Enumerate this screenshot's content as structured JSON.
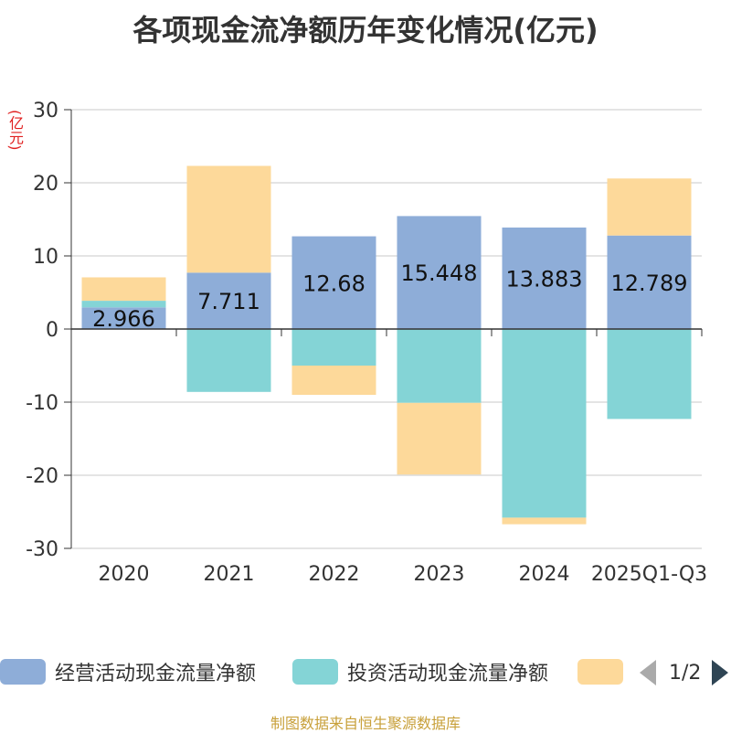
{
  "title": "各项现金流净额历年变化情况(亿元)",
  "unit_label": "(亿元)",
  "source": "制图数据来自恒生聚源数据库",
  "pager": {
    "text": "1/2"
  },
  "colors": {
    "operating": "#8eadd8",
    "investing": "#84d4d6",
    "financing": "#fdd99a",
    "axis": "#333333",
    "grid": "#c8c8c8"
  },
  "chart_data": {
    "type": "bar",
    "stacked": true,
    "title": "各项现金流净额历年变化情况(亿元)",
    "ylabel": "(亿元)",
    "ylim": [
      -30,
      30
    ],
    "yticks": [
      30,
      20,
      10,
      0,
      -10,
      -20,
      -30
    ],
    "categories": [
      "2020",
      "2021",
      "2022",
      "2023",
      "2024",
      "2025Q1-Q3"
    ],
    "legend_position": "bottom",
    "series": [
      {
        "name": "经营活动现金流量净额",
        "color_key": "operating",
        "values": [
          2.966,
          7.711,
          12.68,
          15.448,
          13.883,
          12.789
        ],
        "show_labels": true
      },
      {
        "name": "投资活动现金流量净额",
        "color_key": "investing",
        "values": [
          0.9,
          -8.6,
          -5.0,
          -10.1,
          -25.8,
          -12.3
        ],
        "show_labels": false
      },
      {
        "name": "",
        "color_key": "financing",
        "values": [
          3.2,
          14.6,
          -4.0,
          -9.8,
          -0.9,
          7.8
        ],
        "show_labels": false
      }
    ]
  }
}
